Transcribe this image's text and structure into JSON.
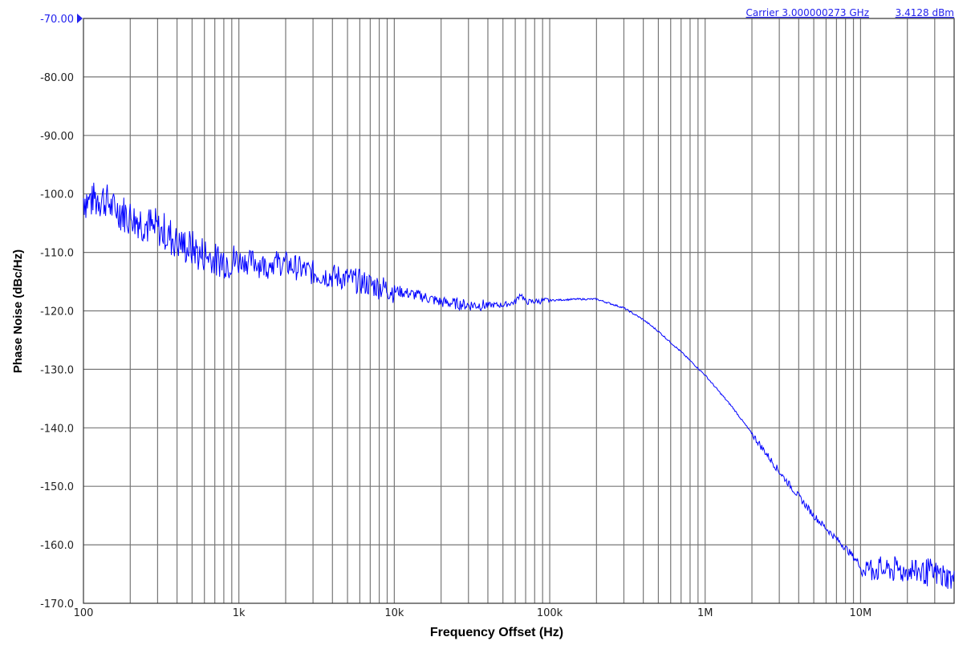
{
  "header": {
    "carrier_label": "Carrier 3.000000273 GHz",
    "power_label": "3.4128 dBm"
  },
  "colors": {
    "trace": "#0000ff",
    "grid": "#777777",
    "ref_label": "#2222ee",
    "header_text": "#2222ee"
  },
  "chart_data": {
    "type": "line",
    "title": "",
    "xlabel": "Frequency Offset (Hz)",
    "ylabel": "Phase Noise (dBc/Hz)",
    "xscale": "log",
    "xlim": [
      100,
      40000000
    ],
    "ylim": [
      -170,
      -70
    ],
    "grid": true,
    "legend": null,
    "x_tick_labels": [
      "100",
      "1k",
      "10k",
      "100k",
      "1M",
      "10M"
    ],
    "x_tick_values": [
      100,
      1000,
      10000,
      100000,
      1000000,
      10000000
    ],
    "y_tick_labels": [
      "-70.00",
      "-80.00",
      "-90.00",
      "-100.0",
      "-110.0",
      "-120.0",
      "-130.0",
      "-140.0",
      "-150.0",
      "-160.0",
      "-170.0"
    ],
    "y_tick_values": [
      -70,
      -80,
      -90,
      -100,
      -110,
      -120,
      -130,
      -140,
      -150,
      -160,
      -170
    ],
    "reference_level": "-70.00",
    "annotations": [
      "Carrier 3.000000273 GHz",
      "3.4128 dBm"
    ],
    "series": [
      {
        "name": "Phase Noise",
        "x": [
          100,
          130,
          160,
          200,
          250,
          300,
          400,
          500,
          700,
          1000,
          1500,
          2000,
          3000,
          5000,
          7000,
          10000,
          15000,
          20000,
          30000,
          50000,
          60000,
          65000,
          70000,
          100000,
          150000,
          200000,
          300000,
          400000,
          500000,
          700000,
          1000000,
          1500000,
          2000000,
          3000000,
          5000000,
          7000000,
          8000000,
          10000000,
          15000000,
          20000000,
          30000000,
          40000000
        ],
        "values": [
          -100.5,
          -100.0,
          -102.0,
          -103.0,
          -104.5,
          -105.5,
          -107.5,
          -109.0,
          -110.5,
          -111.0,
          -111.5,
          -112.0,
          -113.5,
          -114.5,
          -115.5,
          -116.5,
          -117.5,
          -118.5,
          -119.0,
          -119.0,
          -118.5,
          -117.0,
          -118.5,
          -118.2,
          -118.0,
          -118.0,
          -119.5,
          -121.5,
          -123.5,
          -127.0,
          -131.0,
          -136.5,
          -141.0,
          -147.5,
          -155.0,
          -159.0,
          -160.5,
          -163.5,
          -164.0,
          -163.8,
          -164.5,
          -165.5
        ]
      }
    ]
  }
}
